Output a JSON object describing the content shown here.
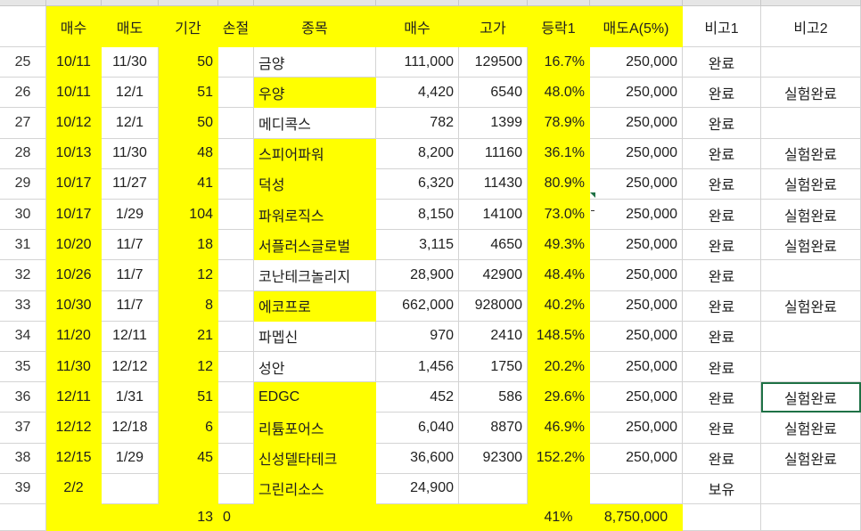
{
  "colors": {
    "highlight": "#ffff00",
    "grid": "#d4d4d4",
    "selection": "#1e7145"
  },
  "headers": [
    "",
    "매수",
    "매도",
    "기간",
    "손절",
    "종목",
    "매수",
    "고가",
    "등락1",
    "매도A(5%)",
    "비고1",
    "비고2"
  ],
  "rows": [
    {
      "n": "25",
      "buy_date": "10/11",
      "sell_date": "11/30",
      "days": "50",
      "stop": "",
      "name": "금양",
      "buy": "111,000",
      "high": "129500",
      "change": "16.7%",
      "sellA": "250,000",
      "note1": "완료",
      "note2": ""
    },
    {
      "n": "26",
      "buy_date": "10/11",
      "sell_date": "12/1",
      "days": "51",
      "stop": "",
      "name": "우양",
      "buy": "4,420",
      "high": "6540",
      "change": "48.0%",
      "sellA": "250,000",
      "note1": "완료",
      "note2": "실험완료"
    },
    {
      "n": "27",
      "buy_date": "10/12",
      "sell_date": "12/1",
      "days": "50",
      "stop": "",
      "name": "메디콕스",
      "buy": "782",
      "high": "1399",
      "change": "78.9%",
      "sellA": "250,000",
      "note1": "완료",
      "note2": ""
    },
    {
      "n": "28",
      "buy_date": "10/13",
      "sell_date": "11/30",
      "days": "48",
      "stop": "",
      "name": "스피어파워",
      "buy": "8,200",
      "high": "11160",
      "change": "36.1%",
      "sellA": "250,000",
      "note1": "완료",
      "note2": "실험완료"
    },
    {
      "n": "29",
      "buy_date": "10/17",
      "sell_date": "11/27",
      "days": "41",
      "stop": "",
      "name": "덕성",
      "buy": "6,320",
      "high": "11430",
      "change": "80.9%",
      "sellA": "250,000",
      "note1": "완료",
      "note2": "실험완료"
    },
    {
      "n": "30",
      "buy_date": "10/17",
      "sell_date": "1/29",
      "days": "104",
      "stop": "",
      "name": "파워로직스",
      "buy": "8,150",
      "high": "14100",
      "change": "73.0%",
      "sellA": "250,000",
      "note1": "완료",
      "note2": "실험완료"
    },
    {
      "n": "31",
      "buy_date": "10/20",
      "sell_date": "11/7",
      "days": "18",
      "stop": "",
      "name": "서플러스글로벌",
      "buy": "3,115",
      "high": "4650",
      "change": "49.3%",
      "sellA": "250,000",
      "note1": "완료",
      "note2": "실험완료"
    },
    {
      "n": "32",
      "buy_date": "10/26",
      "sell_date": "11/7",
      "days": "12",
      "stop": "",
      "name": "코난테크놀리지",
      "buy": "28,900",
      "high": "42900",
      "change": "48.4%",
      "sellA": "250,000",
      "note1": "완료",
      "note2": ""
    },
    {
      "n": "33",
      "buy_date": "10/30",
      "sell_date": "11/7",
      "days": "8",
      "stop": "",
      "name": "에코프로",
      "buy": "662,000",
      "high": "928000",
      "change": "40.2%",
      "sellA": "250,000",
      "note1": "완료",
      "note2": "실험완료"
    },
    {
      "n": "34",
      "buy_date": "11/20",
      "sell_date": "12/11",
      "days": "21",
      "stop": "",
      "name": "파멥신",
      "buy": "970",
      "high": "2410",
      "change": "148.5%",
      "sellA": "250,000",
      "note1": "완료",
      "note2": ""
    },
    {
      "n": "35",
      "buy_date": "11/30",
      "sell_date": "12/12",
      "days": "12",
      "stop": "",
      "name": "성안",
      "buy": "1,456",
      "high": "1750",
      "change": "20.2%",
      "sellA": "250,000",
      "note1": "완료",
      "note2": ""
    },
    {
      "n": "36",
      "buy_date": "12/11",
      "sell_date": "1/31",
      "days": "51",
      "stop": "",
      "name": "EDGC",
      "buy": "452",
      "high": "586",
      "change": "29.6%",
      "sellA": "250,000",
      "note1": "완료",
      "note2": "실험완료"
    },
    {
      "n": "37",
      "buy_date": "12/12",
      "sell_date": "12/18",
      "days": "6",
      "stop": "",
      "name": "리튬포어스",
      "buy": "6,040",
      "high": "8870",
      "change": "46.9%",
      "sellA": "250,000",
      "note1": "완료",
      "note2": "실험완료"
    },
    {
      "n": "38",
      "buy_date": "12/15",
      "sell_date": "1/29",
      "days": "45",
      "stop": "",
      "name": "신성델타테크",
      "buy": "36,600",
      "high": "92300",
      "change": "152.2%",
      "sellA": "250,000",
      "note1": "완료",
      "note2": "실험완료"
    },
    {
      "n": "39",
      "buy_date": "2/2",
      "sell_date": "",
      "days": "",
      "stop": "",
      "name": "그린리소스",
      "buy": "24,900",
      "high": "",
      "change": "",
      "sellA": "",
      "note1": "보유",
      "note2": ""
    }
  ],
  "totals": {
    "days": "13",
    "stop": "0",
    "change": "41%",
    "sellA": "8,750,000"
  }
}
